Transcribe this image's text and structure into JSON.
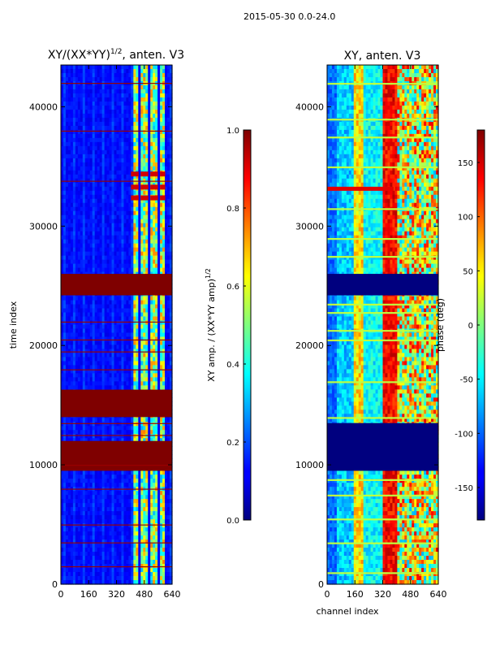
{
  "page_title": "2015-05-30 0.0-24.0",
  "chart_data": [
    {
      "type": "heatmap",
      "title": "XY/(XX*YY)^1/2, anten. V3",
      "title_main": "XY/(XX*YY)",
      "title_sup": "1/2",
      "title_tail": ", anten. V3",
      "xlabel": "",
      "ylabel": "time index",
      "xlim": [
        0,
        640
      ],
      "ylim": [
        0,
        43500
      ],
      "x_ticks": [
        "0",
        "160",
        "320",
        "480",
        "640"
      ],
      "y_ticks": [
        "0",
        "10000",
        "20000",
        "30000",
        "40000"
      ],
      "colorbar": {
        "label_main": "XY amp. / (XX*YY amp)",
        "label_sup": "1/2",
        "range": [
          0.0,
          1.0
        ],
        "ticks": [
          "0.0",
          "0.2",
          "0.4",
          "0.6",
          "0.8",
          "1.0"
        ],
        "colormap": "jet"
      },
      "saturated_time_bands": [
        [
          24200,
          26000
        ],
        [
          14000,
          16300
        ],
        [
          9500,
          12000
        ]
      ]
    },
    {
      "type": "heatmap",
      "title": "XY, anten. V3",
      "xlabel": "channel index",
      "ylabel": "",
      "xlim": [
        0,
        640
      ],
      "ylim": [
        0,
        43500
      ],
      "x_ticks": [
        "0",
        "160",
        "320",
        "480",
        "640"
      ],
      "y_ticks": [
        "0",
        "10000",
        "20000",
        "30000",
        "40000"
      ],
      "colorbar": {
        "label": "phase (deg)",
        "range": [
          -180,
          180
        ],
        "ticks": [
          "-150",
          "-100",
          "-50",
          "0",
          "50",
          "100",
          "150"
        ],
        "colormap": "jet"
      },
      "flagged_time_bands": [
        [
          24200,
          26000
        ],
        [
          9500,
          13500
        ]
      ]
    }
  ]
}
